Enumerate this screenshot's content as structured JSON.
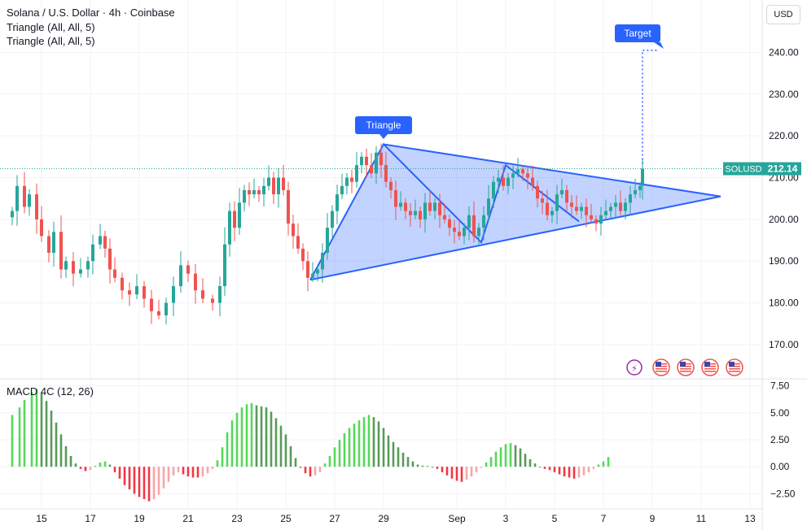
{
  "header": {
    "symbol_line": "Solana / U.S. Dollar · 4h · Coinbase",
    "indicator_1": "Triangle (All, All, 5)",
    "indicator_2": "Triangle (All, All, 5)"
  },
  "currency_button": "USD",
  "price_tag": {
    "symbol": "SOLUSD",
    "value": "212.14"
  },
  "annotations": {
    "triangle_label": "Triangle",
    "target_label": "Target"
  },
  "colors": {
    "up": "#26a69a",
    "down": "#ef5350",
    "pattern": "#2962ff",
    "pattern_fill": "#2962ff",
    "hist_up_strong": "#57d85a",
    "hist_up_weak": "#5a9a5a",
    "hist_down_strong": "#f23645",
    "hist_down_weak": "#f7a6a6"
  },
  "macd": {
    "title": "MACD 4C (12, 26)"
  },
  "chart_data": [
    {
      "type": "candlestick",
      "title": "Solana / U.S. Dollar · 4h · Coinbase",
      "y_axis": {
        "ticks": [
          170,
          180,
          190,
          200,
          210,
          220,
          230,
          240
        ],
        "tick_labels": [
          "170.00",
          "180.00",
          "190.00",
          "200.00",
          "210.00",
          "220.00",
          "230.00",
          "240.00"
        ],
        "range": [
          162,
          251
        ]
      },
      "x_axis": {
        "tick_labels": [
          "15",
          "17",
          "19",
          "21",
          "23",
          "25",
          "27",
          "29",
          "Sep",
          "3",
          "5",
          "7",
          "9",
          "11",
          "13"
        ],
        "tick_day_index": [
          0,
          2,
          4,
          6,
          8,
          10,
          12,
          14,
          17,
          19,
          21,
          23,
          25,
          27,
          29
        ]
      },
      "last_price": 212.14,
      "close_path": [
        [
          -1.2,
          202
        ],
        [
          -1.0,
          208
        ],
        [
          -0.7,
          203
        ],
        [
          -0.5,
          206
        ],
        [
          -0.2,
          200
        ],
        [
          0.0,
          196
        ],
        [
          0.3,
          192
        ],
        [
          0.5,
          197
        ],
        [
          0.8,
          188
        ],
        [
          1.0,
          190
        ],
        [
          1.3,
          187
        ],
        [
          1.6,
          188
        ],
        [
          1.9,
          190
        ],
        [
          2.1,
          194
        ],
        [
          2.4,
          196
        ],
        [
          2.6,
          193
        ],
        [
          2.8,
          188
        ],
        [
          3.0,
          186
        ],
        [
          3.3,
          183
        ],
        [
          3.6,
          182
        ],
        [
          3.9,
          184
        ],
        [
          4.2,
          181
        ],
        [
          4.5,
          178
        ],
        [
          4.8,
          177
        ],
        [
          5.1,
          180
        ],
        [
          5.4,
          184
        ],
        [
          5.7,
          189
        ],
        [
          6.0,
          187
        ],
        [
          6.3,
          183
        ],
        [
          6.6,
          181
        ],
        [
          7.0,
          180
        ],
        [
          7.3,
          184
        ],
        [
          7.5,
          194
        ],
        [
          7.7,
          202
        ],
        [
          7.9,
          198
        ],
        [
          8.1,
          204
        ],
        [
          8.3,
          207
        ],
        [
          8.5,
          206
        ],
        [
          8.7,
          207
        ],
        [
          8.9,
          206
        ],
        [
          9.1,
          208
        ],
        [
          9.3,
          210
        ],
        [
          9.5,
          206
        ],
        [
          9.7,
          210
        ],
        [
          9.9,
          207
        ],
        [
          10.1,
          199
        ],
        [
          10.3,
          196
        ],
        [
          10.5,
          193
        ],
        [
          10.7,
          190
        ],
        [
          10.9,
          186
        ],
        [
          11.1,
          187
        ],
        [
          11.3,
          188
        ],
        [
          11.5,
          192
        ],
        [
          11.7,
          198
        ],
        [
          11.9,
          202
        ],
        [
          12.1,
          206
        ],
        [
          12.3,
          208
        ],
        [
          12.5,
          210
        ],
        [
          12.7,
          209
        ],
        [
          12.9,
          213
        ],
        [
          13.1,
          215
        ],
        [
          13.3,
          213
        ],
        [
          13.5,
          211
        ],
        [
          13.7,
          216
        ],
        [
          13.9,
          213
        ],
        [
          14.1,
          209
        ],
        [
          14.3,
          207
        ],
        [
          14.5,
          203
        ],
        [
          14.7,
          204
        ],
        [
          14.9,
          202
        ],
        [
          15.1,
          201
        ],
        [
          15.3,
          202
        ],
        [
          15.5,
          200
        ],
        [
          15.7,
          204
        ],
        [
          15.9,
          202
        ],
        [
          16.1,
          204
        ],
        [
          16.3,
          201
        ],
        [
          16.5,
          200
        ],
        [
          16.7,
          198
        ],
        [
          16.9,
          197
        ],
        [
          17.1,
          196
        ],
        [
          17.3,
          198
        ],
        [
          17.5,
          201
        ],
        [
          17.7,
          196
        ],
        [
          17.9,
          198
        ],
        [
          18.1,
          201
        ],
        [
          18.3,
          205
        ],
        [
          18.5,
          209
        ],
        [
          18.7,
          210
        ],
        [
          18.9,
          208
        ],
        [
          19.1,
          210
        ],
        [
          19.3,
          211
        ],
        [
          19.5,
          212
        ],
        [
          19.7,
          211
        ],
        [
          19.9,
          210
        ],
        [
          20.1,
          208
        ],
        [
          20.3,
          205
        ],
        [
          20.5,
          204
        ],
        [
          20.7,
          201
        ],
        [
          20.9,
          202
        ],
        [
          21.1,
          206
        ],
        [
          21.3,
          207
        ],
        [
          21.5,
          204
        ],
        [
          21.7,
          203
        ],
        [
          21.9,
          202
        ],
        [
          22.1,
          203
        ],
        [
          22.3,
          201
        ],
        [
          22.5,
          200
        ],
        [
          22.7,
          199
        ],
        [
          22.9,
          201
        ],
        [
          23.1,
          202
        ],
        [
          23.3,
          203
        ],
        [
          23.5,
          204
        ],
        [
          23.7,
          202
        ],
        [
          23.9,
          204
        ],
        [
          24.1,
          206
        ],
        [
          24.3,
          207
        ],
        [
          24.5,
          208
        ],
        [
          24.6,
          212.14
        ]
      ],
      "triangle_pattern": {
        "points": [
          [
            "Aug 26",
            185.5
          ],
          [
            "Aug 29",
            218
          ],
          [
            "Sep 2",
            194.5
          ],
          [
            "Sep 3",
            213
          ],
          [
            "Sep 6",
            199.5
          ]
        ],
        "upper_line": [
          [
            "Aug 29",
            218
          ],
          [
            "Sep 11.8",
            205.5
          ]
        ],
        "lower_line": [
          [
            "Aug 26",
            185.5
          ],
          [
            "Sep 11.8",
            205.5
          ]
        ],
        "target_price": 240.5
      }
    },
    {
      "type": "bar",
      "title": "MACD 4C (12, 26)",
      "y_axis": {
        "ticks": [
          -2.5,
          0,
          2.5,
          5,
          7.5
        ],
        "tick_labels": [
          "−2.50",
          "0.00",
          "2.50",
          "5.00",
          "7.50"
        ],
        "range": [
          -3.6,
          8
        ]
      },
      "histogram": [
        [
          -1.2,
          4.8
        ],
        [
          -0.9,
          5.5
        ],
        [
          -0.7,
          6.2
        ],
        [
          -0.4,
          6.9
        ],
        [
          -0.2,
          7.2
        ],
        [
          0.0,
          6.8
        ],
        [
          0.2,
          6.1
        ],
        [
          0.4,
          5.2
        ],
        [
          0.6,
          4.1
        ],
        [
          0.8,
          3.0
        ],
        [
          1.0,
          1.9
        ],
        [
          1.2,
          1.0
        ],
        [
          1.4,
          0.3
        ],
        [
          1.6,
          -0.2
        ],
        [
          1.8,
          -0.4
        ],
        [
          2.0,
          -0.3
        ],
        [
          2.2,
          0.1
        ],
        [
          2.4,
          0.4
        ],
        [
          2.6,
          0.5
        ],
        [
          2.8,
          0.2
        ],
        [
          3.0,
          -0.5
        ],
        [
          3.2,
          -1.1
        ],
        [
          3.4,
          -1.7
        ],
        [
          3.6,
          -2.1
        ],
        [
          3.8,
          -2.5
        ],
        [
          4.0,
          -2.8
        ],
        [
          4.2,
          -3.0
        ],
        [
          4.4,
          -3.2
        ],
        [
          4.6,
          -3.0
        ],
        [
          4.8,
          -2.6
        ],
        [
          5.0,
          -2.0
        ],
        [
          5.2,
          -1.4
        ],
        [
          5.4,
          -0.8
        ],
        [
          5.6,
          -0.5
        ],
        [
          5.8,
          -0.7
        ],
        [
          6.0,
          -0.9
        ],
        [
          6.2,
          -1.0
        ],
        [
          6.4,
          -1.0
        ],
        [
          6.6,
          -0.9
        ],
        [
          6.8,
          -0.6
        ],
        [
          7.0,
          -0.2
        ],
        [
          7.2,
          0.6
        ],
        [
          7.4,
          1.8
        ],
        [
          7.6,
          3.2
        ],
        [
          7.8,
          4.3
        ],
        [
          8.0,
          5.0
        ],
        [
          8.2,
          5.5
        ],
        [
          8.4,
          5.8
        ],
        [
          8.6,
          5.9
        ],
        [
          8.8,
          5.7
        ],
        [
          9.0,
          5.6
        ],
        [
          9.2,
          5.5
        ],
        [
          9.4,
          5.1
        ],
        [
          9.6,
          4.5
        ],
        [
          9.8,
          3.8
        ],
        [
          10.0,
          3.0
        ],
        [
          10.2,
          1.9
        ],
        [
          10.4,
          0.8
        ],
        [
          10.6,
          -0.1
        ],
        [
          10.8,
          -0.6
        ],
        [
          11.0,
          -0.9
        ],
        [
          11.2,
          -0.8
        ],
        [
          11.4,
          -0.5
        ],
        [
          11.6,
          0.3
        ],
        [
          11.8,
          1.0
        ],
        [
          12.0,
          1.8
        ],
        [
          12.2,
          2.5
        ],
        [
          12.4,
          3.1
        ],
        [
          12.6,
          3.6
        ],
        [
          12.8,
          4.0
        ],
        [
          13.0,
          4.3
        ],
        [
          13.2,
          4.6
        ],
        [
          13.4,
          4.8
        ],
        [
          13.6,
          4.6
        ],
        [
          13.8,
          4.2
        ],
        [
          14.0,
          3.6
        ],
        [
          14.2,
          2.9
        ],
        [
          14.4,
          2.3
        ],
        [
          14.6,
          1.8
        ],
        [
          14.8,
          1.3
        ],
        [
          15.0,
          0.9
        ],
        [
          15.2,
          0.5
        ],
        [
          15.4,
          0.2
        ],
        [
          15.6,
          0.1
        ],
        [
          15.8,
          0.1
        ],
        [
          16.0,
          0.0
        ],
        [
          16.2,
          -0.2
        ],
        [
          16.4,
          -0.5
        ],
        [
          16.6,
          -0.8
        ],
        [
          16.8,
          -1.1
        ],
        [
          17.0,
          -1.3
        ],
        [
          17.2,
          -1.4
        ],
        [
          17.4,
          -1.2
        ],
        [
          17.6,
          -0.9
        ],
        [
          17.8,
          -0.5
        ],
        [
          18.0,
          -0.1
        ],
        [
          18.2,
          0.4
        ],
        [
          18.4,
          0.9
        ],
        [
          18.6,
          1.4
        ],
        [
          18.8,
          1.8
        ],
        [
          19.0,
          2.1
        ],
        [
          19.2,
          2.2
        ],
        [
          19.4,
          2.0
        ],
        [
          19.6,
          1.7
        ],
        [
          19.8,
          1.2
        ],
        [
          20.0,
          0.7
        ],
        [
          20.2,
          0.3
        ],
        [
          20.4,
          0.0
        ],
        [
          20.6,
          -0.2
        ],
        [
          20.8,
          -0.3
        ],
        [
          21.0,
          -0.5
        ],
        [
          21.2,
          -0.7
        ],
        [
          21.4,
          -0.9
        ],
        [
          21.6,
          -1.0
        ],
        [
          21.8,
          -1.1
        ],
        [
          22.0,
          -1.0
        ],
        [
          22.2,
          -0.8
        ],
        [
          22.4,
          -0.5
        ],
        [
          22.6,
          -0.2
        ],
        [
          22.8,
          0.2
        ],
        [
          23.0,
          0.5
        ],
        [
          23.2,
          0.9
        ]
      ]
    }
  ]
}
